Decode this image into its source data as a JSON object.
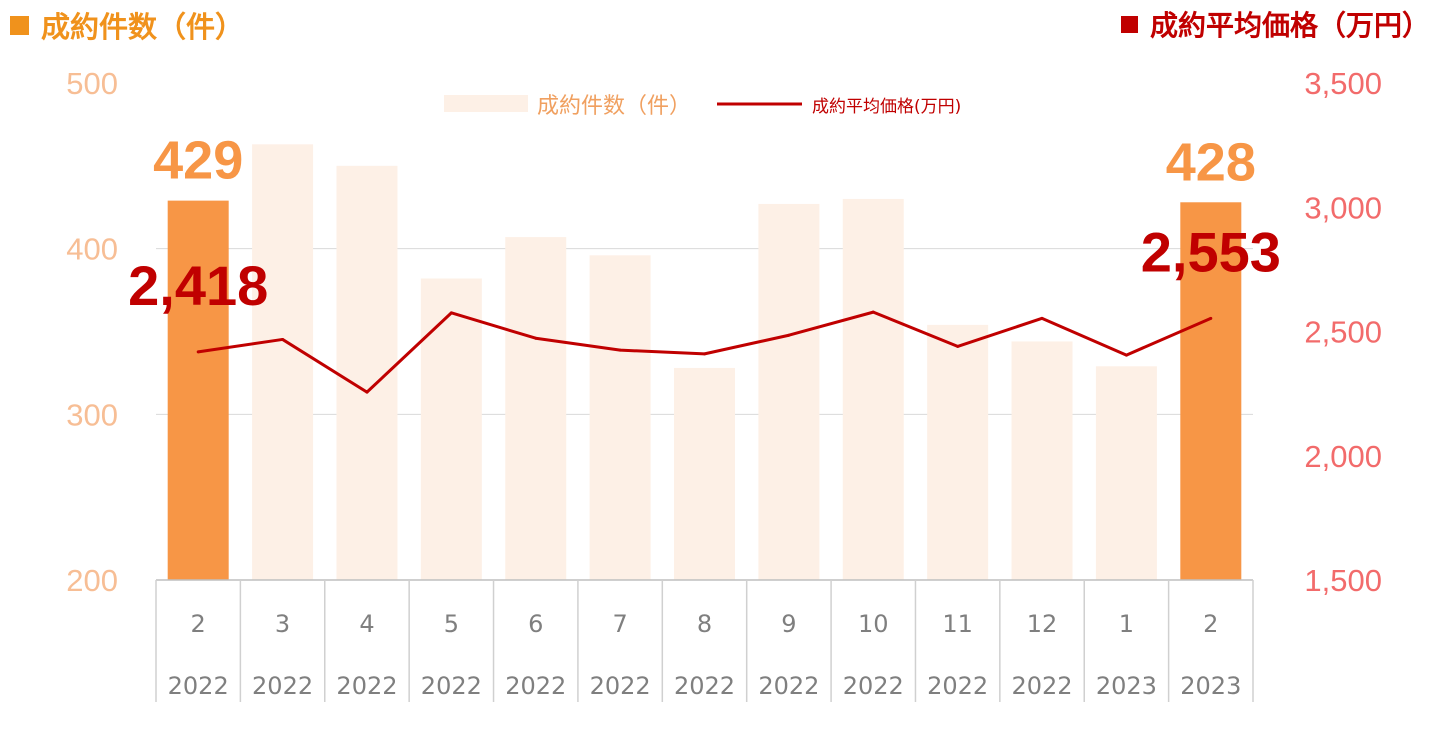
{
  "headers": {
    "left": "成約件数（件）",
    "right": "成約平均価格（万円）"
  },
  "legend": {
    "bar_label": "成約件数（件）",
    "line_label": "成約平均価格(万円)"
  },
  "colors": {
    "bar_light": "#fdf0e6",
    "bar_highlight": "#f79646",
    "line": "#c00000",
    "left_tick": "#f7be95",
    "right_tick": "#f26b6b",
    "left_header": "#f0921c",
    "right_header": "#c00000",
    "category_text": "#7f7f7f",
    "gridline": "#d9d9d9"
  },
  "chart_data": {
    "type": "bar",
    "categories": [
      {
        "month": "2",
        "year": "2022"
      },
      {
        "month": "3",
        "year": "2022"
      },
      {
        "month": "4",
        "year": "2022"
      },
      {
        "month": "5",
        "year": "2022"
      },
      {
        "month": "6",
        "year": "2022"
      },
      {
        "month": "7",
        "year": "2022"
      },
      {
        "month": "8",
        "year": "2022"
      },
      {
        "month": "9",
        "year": "2022"
      },
      {
        "month": "10",
        "year": "2022"
      },
      {
        "month": "11",
        "year": "2022"
      },
      {
        "month": "12",
        "year": "2022"
      },
      {
        "month": "1",
        "year": "2023"
      },
      {
        "month": "2",
        "year": "2023"
      }
    ],
    "series": [
      {
        "name": "成約件数（件）",
        "type": "bar",
        "axis": "left",
        "values": [
          429,
          463,
          450,
          382,
          407,
          396,
          328,
          427,
          430,
          354,
          344,
          329,
          428
        ],
        "highlight_indices": [
          0,
          12
        ]
      },
      {
        "name": "成約平均価格(万円)",
        "type": "line",
        "axis": "right",
        "values": [
          2418,
          2468,
          2256,
          2575,
          2473,
          2425,
          2410,
          2485,
          2578,
          2440,
          2553,
          2405,
          2553
        ]
      }
    ],
    "left_axis": {
      "min": 200,
      "max": 500,
      "ticks": [
        "200",
        "300",
        "400",
        "500"
      ]
    },
    "right_axis": {
      "min": 1500,
      "max": 3500,
      "ticks": [
        "1,500",
        "2,000",
        "2,500",
        "3,000",
        "3,500"
      ]
    },
    "annotations": [
      {
        "text": "429",
        "series": "bar",
        "index": 0
      },
      {
        "text": "428",
        "series": "bar",
        "index": 12
      },
      {
        "text": "2,418",
        "series": "line",
        "index": 0
      },
      {
        "text": "2,553",
        "series": "line",
        "index": 12
      }
    ],
    "grid": true,
    "legend_position": "top-center"
  }
}
